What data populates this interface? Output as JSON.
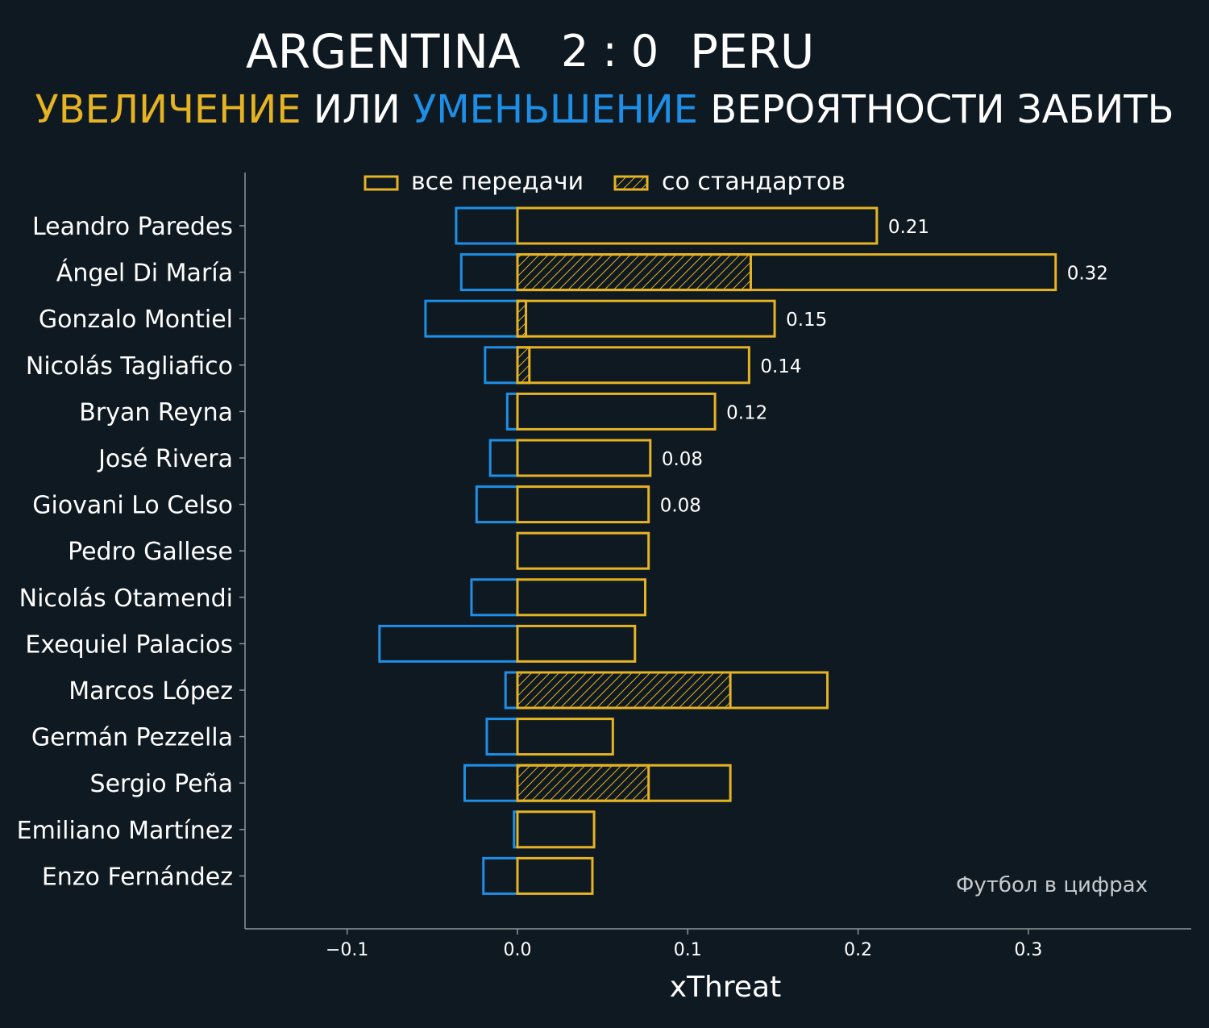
{
  "header": {
    "home": "ARGENTINA",
    "score": "2 : 0",
    "away": "PERU",
    "subtitle_increase": "УВЕЛИЧЕНИЕ",
    "subtitle_or": "ИЛИ",
    "subtitle_decrease": "УМЕНЬШЕНИЕ",
    "subtitle_rest": "ВЕРОЯТНОСТИ ЗАБИТЬ"
  },
  "colors": {
    "background": "#0f1921",
    "increase": "#e6b323",
    "decrease": "#1e8fe6",
    "axis": "#8a959c",
    "text": "#ffffff",
    "watermark": "#c5cacd"
  },
  "chart_data": {
    "type": "bar",
    "orientation": "horizontal",
    "xlabel": "xThreat",
    "xlim": [
      -0.16,
      0.395
    ],
    "xticks": [
      -0.1,
      0.0,
      0.1,
      0.2,
      0.3
    ],
    "xtick_labels": [
      "−0.1",
      "0.0",
      "0.1",
      "0.2",
      "0.3"
    ],
    "legend": {
      "position": "top-center",
      "entries": [
        "все передачи",
        "со стандартов"
      ]
    },
    "watermark": "Футбол в цифрах",
    "categories": [
      "Leandro Paredes",
      "Ángel Di María",
      "Gonzalo Montiel",
      "Nicolás Tagliafico",
      "Bryan Reyna",
      "José Rivera",
      "Giovani Lo Celso",
      "Pedro Gallese",
      "Nicolás Otamendi",
      "Exequiel Palacios",
      "Marcos López",
      "Germán Pezzella",
      "Sergio Peña",
      "Emiliano Martínez",
      "Enzo Fernández"
    ],
    "series": [
      {
        "name": "все передачи (увеличение)",
        "values": [
          0.211,
          0.316,
          0.151,
          0.136,
          0.116,
          0.078,
          0.077,
          0.077,
          0.075,
          0.069,
          0.182,
          0.056,
          0.125,
          0.045,
          0.044
        ]
      },
      {
        "name": "все передачи (уменьшение)",
        "values": [
          -0.036,
          -0.033,
          -0.054,
          -0.019,
          -0.006,
          -0.016,
          -0.024,
          0.0,
          -0.027,
          -0.081,
          -0.007,
          -0.018,
          -0.031,
          -0.002,
          -0.02
        ]
      },
      {
        "name": "со стандартов",
        "values": [
          0.0,
          0.137,
          0.005,
          0.007,
          0.0,
          0.0,
          0.0,
          0.0,
          0.0,
          0.0,
          0.125,
          0.0,
          0.077,
          0.0,
          0.0
        ]
      }
    ],
    "value_labels": [
      "0.21",
      "0.32",
      "0.15",
      "0.14",
      "0.12",
      "0.08",
      "0.08",
      "",
      "",
      "",
      "",
      "",
      "",
      "",
      ""
    ]
  }
}
